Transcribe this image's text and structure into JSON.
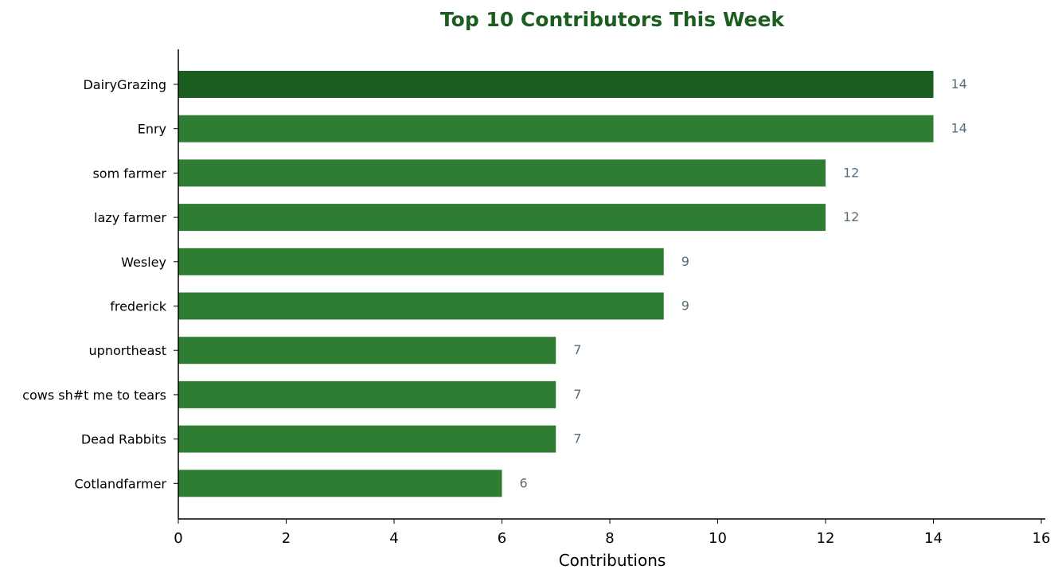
{
  "chart_data": {
    "type": "bar",
    "orientation": "horizontal",
    "title": "Top 10 Contributors This Week",
    "xlabel": "Contributions",
    "ylabel": "",
    "xlim": [
      0,
      16
    ],
    "x_ticks": [
      0,
      2,
      4,
      6,
      8,
      10,
      12,
      14,
      16
    ],
    "categories": [
      "DairyGrazing",
      "Enry",
      "som farmer",
      "lazy farmer",
      "Wesley",
      "frederick",
      "upnortheast",
      "cows sh#t me to tears",
      "Dead Rabbits",
      "Cotlandfarmer"
    ],
    "values": [
      14,
      14,
      12,
      12,
      9,
      9,
      7,
      7,
      7,
      6
    ],
    "data_labels": true,
    "grid": false,
    "legend": "none",
    "colors": {
      "title": "#1b5e20",
      "highlight_bar": "#1b5e20",
      "bar": "#2e7d32",
      "value_label": "#546e7a",
      "axis": "#000000"
    }
  }
}
